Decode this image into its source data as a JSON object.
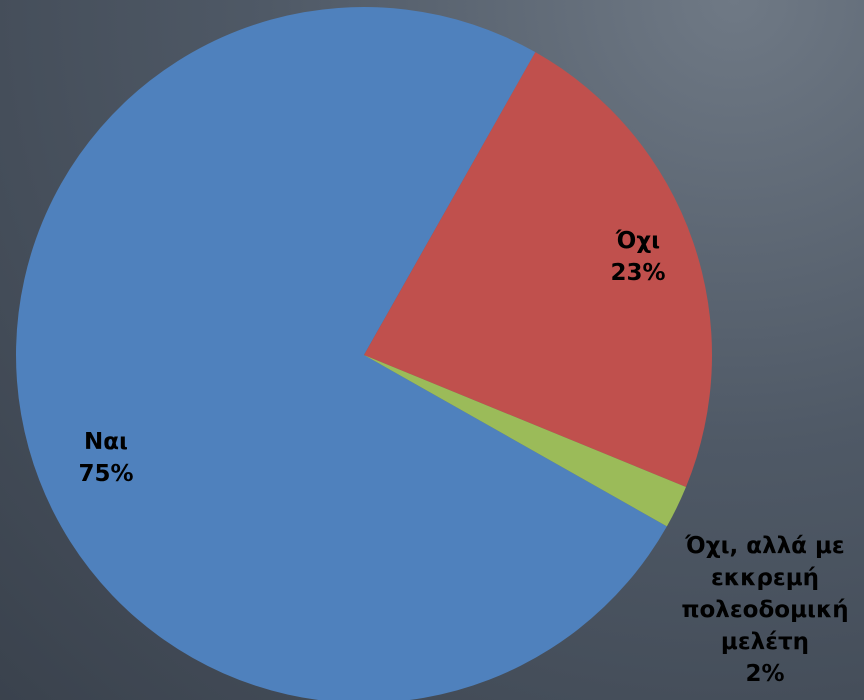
{
  "chart_data": {
    "type": "pie",
    "categories": [
      "Ναι",
      "Όχι",
      "Όχι, αλλά με εκκρεμή πολεοδομική μελέτη"
    ],
    "values": [
      75,
      23,
      2
    ],
    "value_labels": [
      "75%",
      "23%",
      "2%"
    ],
    "colors": [
      "#4f81bd",
      "#c0504d",
      "#9bbb59"
    ]
  }
}
